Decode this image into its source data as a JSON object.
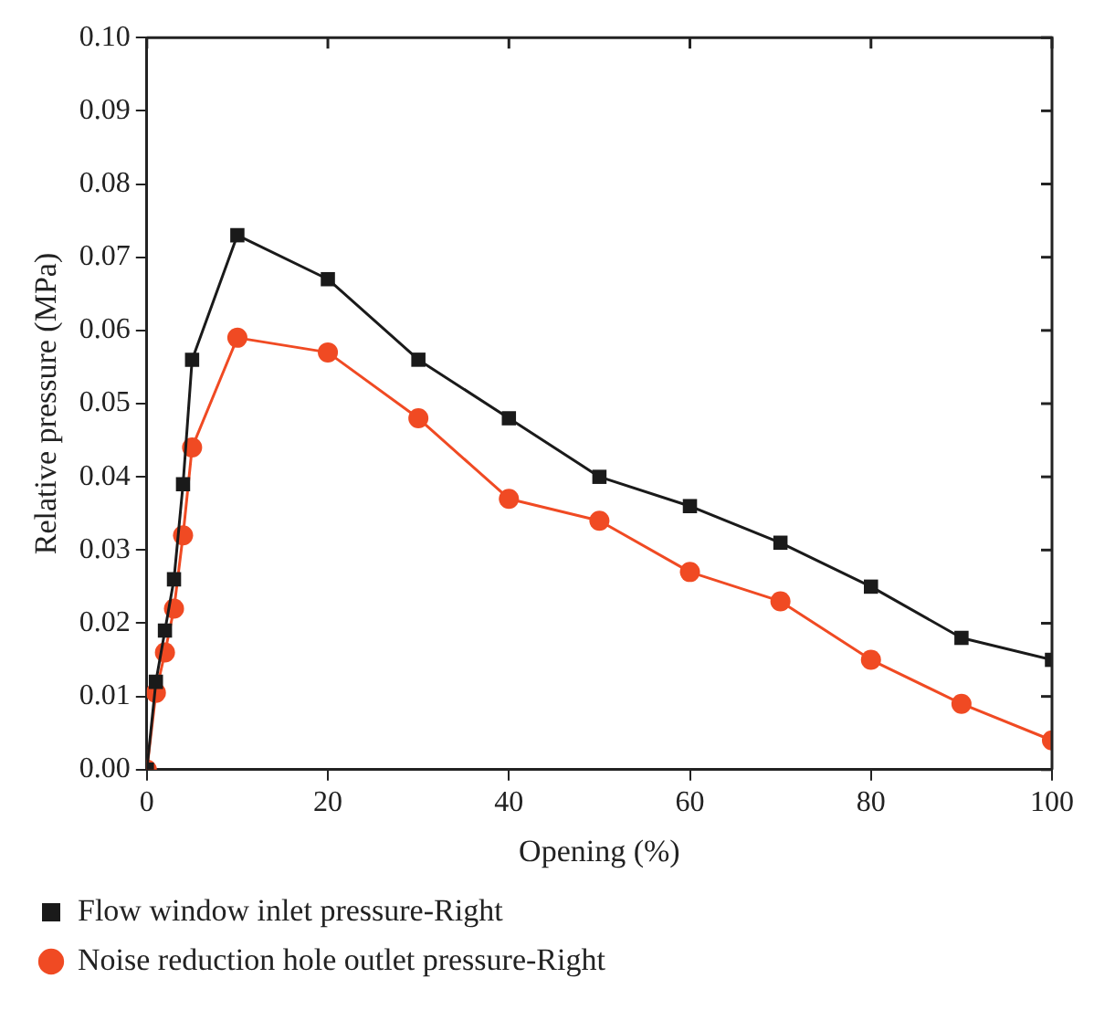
{
  "chart_data": {
    "type": "line",
    "xlabel": "Opening (%)",
    "ylabel": "Relative pressure (MPa)",
    "xlim": [
      0,
      100
    ],
    "xticks": [
      0,
      20,
      40,
      60,
      80,
      100
    ],
    "ylim": [
      0,
      0.1
    ],
    "yticks": [
      {
        "value": 0,
        "label": "0.00"
      },
      {
        "value": 0.01,
        "label": "0.01"
      },
      {
        "value": 0.02,
        "label": "0.02"
      },
      {
        "value": 0.03,
        "label": "0.03"
      },
      {
        "value": 0.04,
        "label": "0.04"
      },
      {
        "value": 0.05,
        "label": "0.05"
      },
      {
        "value": 0.06,
        "label": "0.06"
      },
      {
        "value": 0.07,
        "label": "0.07"
      },
      {
        "value": 0.08,
        "label": "0.08"
      },
      {
        "value": 0.09,
        "label": "0.09"
      },
      {
        "value": 0.1,
        "label": "0.10"
      }
    ],
    "grid": false,
    "legend": "bottom",
    "line_style": "solid",
    "x": [
      0,
      1,
      2,
      3,
      4,
      5,
      10,
      20,
      30,
      40,
      50,
      60,
      70,
      80,
      90,
      100
    ],
    "series": [
      {
        "name": "Flow window inlet pressure-Right",
        "color": "#1a1a1a",
        "marker": "square",
        "values": [
          0,
          0.012,
          0.019,
          0.026,
          0.039,
          0.056,
          0.073,
          0.067,
          0.056,
          0.048,
          0.04,
          0.036,
          0.031,
          0.025,
          0.018,
          0.015
        ]
      },
      {
        "name": "Noise reduction hole outlet pressure-Right",
        "color": "#f04a23",
        "marker": "circle",
        "values": [
          0,
          0.0105,
          0.016,
          0.022,
          0.032,
          0.044,
          0.059,
          0.057,
          0.048,
          0.037,
          0.034,
          0.027,
          0.023,
          0.015,
          0.009,
          0.004
        ]
      }
    ]
  }
}
